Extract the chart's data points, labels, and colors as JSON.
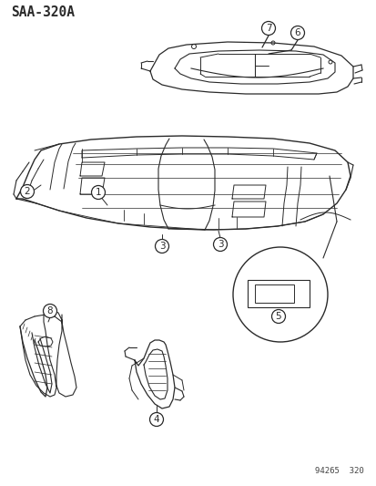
{
  "title": "SAA-320A",
  "footnote": "94265  320",
  "bg_color": "#ffffff",
  "line_color": "#2a2a2a",
  "figsize": [
    4.14,
    5.33
  ],
  "dpi": 100,
  "xlim": [
    0,
    414
  ],
  "ylim": [
    0,
    533
  ]
}
